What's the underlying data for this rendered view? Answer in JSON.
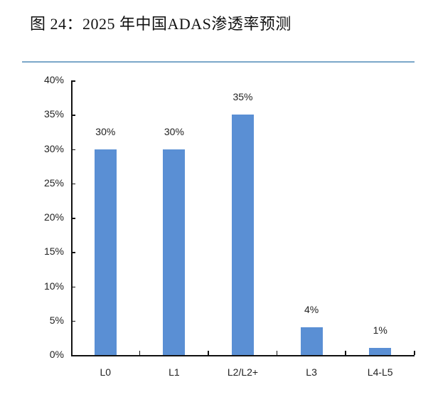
{
  "header": {
    "title": "图 24：2025 年中国ADAS渗透率预测"
  },
  "colors": {
    "bar": "#5a8fd4",
    "rule": "#7ba7c9",
    "axis": "#111111"
  },
  "chart_data": {
    "type": "bar",
    "title": "图 24：2025 年中国ADAS渗透率预测",
    "xlabel": "",
    "ylabel": "",
    "categories": [
      "L0",
      "L1",
      "L2/L2+",
      "L3",
      "L4-L5"
    ],
    "values": [
      30,
      30,
      35,
      4,
      1
    ],
    "data_labels": [
      "30%",
      "30%",
      "35%",
      "4%",
      "1%"
    ],
    "ylim": [
      0,
      40
    ],
    "yticks": [
      "0%",
      "5%",
      "10%",
      "15%",
      "20%",
      "25%",
      "30%",
      "35%",
      "40%"
    ],
    "grid": false,
    "legend": null
  }
}
